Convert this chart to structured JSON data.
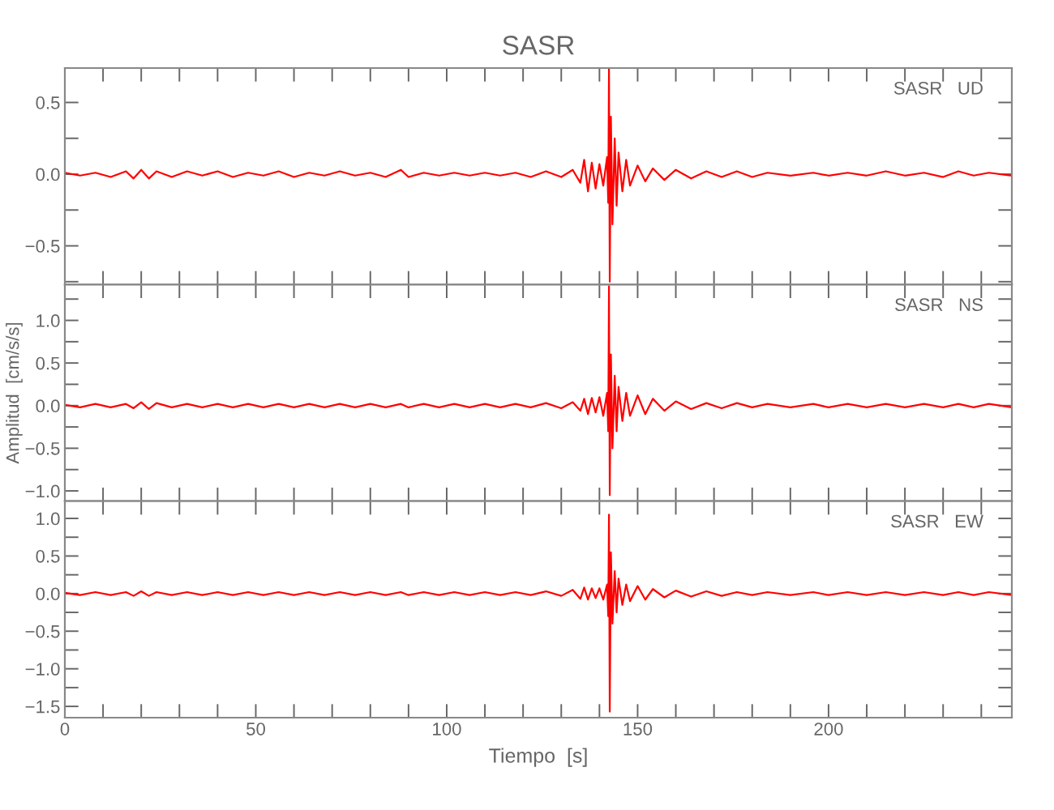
{
  "chart_data": [
    {
      "type": "line",
      "title": "SASR",
      "annotations": [
        "SASR   UD"
      ],
      "tick_labels": "y",
      "x": [
        0,
        4,
        8,
        12,
        16,
        18,
        20,
        22,
        24,
        28,
        32,
        36,
        40,
        44,
        48,
        52,
        56,
        60,
        64,
        68,
        72,
        76,
        80,
        84,
        88,
        90,
        94,
        98,
        102,
        106,
        110,
        114,
        118,
        122,
        126,
        130,
        133,
        135,
        136,
        137,
        138,
        139,
        140,
        141,
        142,
        142.3,
        142.5,
        142.7,
        143,
        143.4,
        144,
        144.5,
        145,
        146,
        147,
        148,
        150,
        152,
        154,
        157,
        160,
        164,
        168,
        172,
        176,
        180,
        184,
        190,
        196,
        200,
        205,
        210,
        215,
        220,
        225,
        230,
        234,
        238,
        242,
        248
      ],
      "series": [
        {
          "color": "#ff0000",
          "values": [
            0.01,
            -0.01,
            0.01,
            -0.02,
            0.02,
            -0.03,
            0.03,
            -0.03,
            0.02,
            -0.02,
            0.02,
            -0.01,
            0.02,
            -0.02,
            0.01,
            -0.01,
            0.02,
            -0.02,
            0.01,
            -0.01,
            0.02,
            -0.01,
            0.01,
            -0.02,
            0.03,
            -0.02,
            0.01,
            -0.01,
            0.01,
            -0.01,
            0.01,
            -0.01,
            0.01,
            -0.02,
            0.02,
            -0.02,
            0.03,
            -0.06,
            0.1,
            -0.12,
            0.08,
            -0.1,
            0.07,
            -0.08,
            0.12,
            -0.2,
            0.74,
            -0.75,
            0.4,
            -0.35,
            0.25,
            -0.22,
            0.15,
            -0.12,
            0.1,
            -0.08,
            0.06,
            -0.05,
            0.04,
            -0.04,
            0.03,
            -0.03,
            0.02,
            -0.02,
            0.02,
            -0.02,
            0.01,
            -0.01,
            0.01,
            -0.01,
            0.01,
            -0.01,
            0.02,
            -0.01,
            0.01,
            -0.02,
            0.02,
            -0.01,
            0.01,
            -0.01
          ]
        }
      ],
      "xlim": [
        0,
        248
      ],
      "xticks": [
        {
          "value": 0,
          "label": null
        },
        {
          "value": 10,
          "label": null
        },
        {
          "value": 20,
          "label": null
        },
        {
          "value": 30,
          "label": null
        },
        {
          "value": 40,
          "label": null
        },
        {
          "value": 50,
          "label": null
        },
        {
          "value": 60,
          "label": null
        },
        {
          "value": 70,
          "label": null
        },
        {
          "value": 80,
          "label": null
        },
        {
          "value": 90,
          "label": null
        },
        {
          "value": 100,
          "label": null
        },
        {
          "value": 110,
          "label": null
        },
        {
          "value": 120,
          "label": null
        },
        {
          "value": 130,
          "label": null
        },
        {
          "value": 140,
          "label": null
        },
        {
          "value": 150,
          "label": null
        },
        {
          "value": 160,
          "label": null
        },
        {
          "value": 170,
          "label": null
        },
        {
          "value": 180,
          "label": null
        },
        {
          "value": 190,
          "label": null
        },
        {
          "value": 200,
          "label": null
        },
        {
          "value": 210,
          "label": null
        },
        {
          "value": 220,
          "label": null
        },
        {
          "value": 230,
          "label": null
        },
        {
          "value": 240,
          "label": null
        }
      ],
      "ylim": [
        -0.77,
        0.74
      ],
      "yticks": [
        {
          "value": -0.75,
          "label": null
        },
        {
          "value": -0.5,
          "label": "−0.5"
        },
        {
          "value": -0.25,
          "label": null
        },
        {
          "value": 0,
          "label": "0.0"
        },
        {
          "value": 0.25,
          "label": null
        },
        {
          "value": 0.5,
          "label": "0.5"
        }
      ]
    },
    {
      "type": "line",
      "ylabel": "Amplitud  [cm/s/s]",
      "annotations": [
        "SASR   NS"
      ],
      "tick_labels": "y",
      "x": [
        0,
        4,
        8,
        12,
        16,
        18,
        20,
        22,
        24,
        28,
        32,
        36,
        40,
        44,
        48,
        52,
        56,
        60,
        64,
        68,
        72,
        76,
        80,
        84,
        88,
        90,
        94,
        98,
        102,
        106,
        110,
        114,
        118,
        122,
        126,
        130,
        133,
        135,
        136,
        137,
        138,
        139,
        140,
        141,
        142,
        142.3,
        142.5,
        142.7,
        143,
        143.4,
        144,
        144.5,
        145,
        146,
        147,
        148,
        150,
        152,
        154,
        157,
        160,
        164,
        168,
        172,
        176,
        180,
        184,
        190,
        196,
        200,
        205,
        210,
        215,
        220,
        225,
        230,
        234,
        238,
        242,
        248
      ],
      "series": [
        {
          "color": "#ff0000",
          "values": [
            0.01,
            -0.02,
            0.02,
            -0.02,
            0.02,
            -0.03,
            0.04,
            -0.04,
            0.03,
            -0.02,
            0.02,
            -0.02,
            0.02,
            -0.02,
            0.02,
            -0.02,
            0.02,
            -0.02,
            0.02,
            -0.02,
            0.02,
            -0.02,
            0.02,
            -0.02,
            0.02,
            -0.02,
            0.02,
            -0.02,
            0.02,
            -0.02,
            0.02,
            -0.02,
            0.02,
            -0.02,
            0.03,
            -0.03,
            0.04,
            -0.06,
            0.08,
            -0.1,
            0.09,
            -0.08,
            0.1,
            -0.12,
            0.15,
            -0.3,
            1.4,
            -1.05,
            0.6,
            -0.5,
            0.35,
            -0.3,
            0.22,
            -0.18,
            0.15,
            -0.12,
            0.12,
            -0.1,
            0.08,
            -0.06,
            0.05,
            -0.04,
            0.03,
            -0.03,
            0.03,
            -0.02,
            0.02,
            -0.02,
            0.02,
            -0.02,
            0.02,
            -0.02,
            0.02,
            -0.02,
            0.02,
            -0.02,
            0.02,
            -0.02,
            0.02,
            -0.02
          ]
        }
      ],
      "xlim": [
        0,
        248
      ],
      "xticks": [
        {
          "value": 0,
          "label": null
        },
        {
          "value": 10,
          "label": null
        },
        {
          "value": 20,
          "label": null
        },
        {
          "value": 30,
          "label": null
        },
        {
          "value": 40,
          "label": null
        },
        {
          "value": 50,
          "label": null
        },
        {
          "value": 60,
          "label": null
        },
        {
          "value": 70,
          "label": null
        },
        {
          "value": 80,
          "label": null
        },
        {
          "value": 90,
          "label": null
        },
        {
          "value": 100,
          "label": null
        },
        {
          "value": 110,
          "label": null
        },
        {
          "value": 120,
          "label": null
        },
        {
          "value": 130,
          "label": null
        },
        {
          "value": 140,
          "label": null
        },
        {
          "value": 150,
          "label": null
        },
        {
          "value": 160,
          "label": null
        },
        {
          "value": 170,
          "label": null
        },
        {
          "value": 180,
          "label": null
        },
        {
          "value": 190,
          "label": null
        },
        {
          "value": 200,
          "label": null
        },
        {
          "value": 210,
          "label": null
        },
        {
          "value": 220,
          "label": null
        },
        {
          "value": 230,
          "label": null
        },
        {
          "value": 240,
          "label": null
        }
      ],
      "ylim": [
        -1.12,
        1.42
      ],
      "yticks": [
        {
          "value": -1.0,
          "label": "−1.0"
        },
        {
          "value": -0.75,
          "label": null
        },
        {
          "value": -0.5,
          "label": "−0.5"
        },
        {
          "value": -0.25,
          "label": null
        },
        {
          "value": 0,
          "label": "0.0"
        },
        {
          "value": 0.25,
          "label": null
        },
        {
          "value": 0.5,
          "label": "0.5"
        },
        {
          "value": 0.75,
          "label": null
        },
        {
          "value": 1.0,
          "label": "1.0"
        },
        {
          "value": 1.25,
          "label": null
        }
      ]
    },
    {
      "type": "line",
      "xlabel": "Tiempo  [s]",
      "annotations": [
        "SASR   EW"
      ],
      "x": [
        0,
        4,
        8,
        12,
        16,
        18,
        20,
        22,
        24,
        28,
        32,
        36,
        40,
        44,
        48,
        52,
        56,
        60,
        64,
        68,
        72,
        76,
        80,
        84,
        88,
        90,
        94,
        98,
        102,
        106,
        110,
        114,
        118,
        122,
        126,
        130,
        133,
        135,
        136,
        137,
        138,
        139,
        140,
        141,
        142,
        142.3,
        142.5,
        142.7,
        143,
        143.4,
        144,
        144.5,
        145,
        146,
        147,
        148,
        150,
        152,
        154,
        157,
        160,
        164,
        168,
        172,
        176,
        180,
        184,
        190,
        196,
        200,
        205,
        210,
        215,
        220,
        225,
        230,
        234,
        238,
        242,
        248
      ],
      "series": [
        {
          "color": "#ff0000",
          "values": [
            0.01,
            -0.02,
            0.02,
            -0.02,
            0.02,
            -0.03,
            0.03,
            -0.03,
            0.02,
            -0.02,
            0.02,
            -0.02,
            0.02,
            -0.02,
            0.02,
            -0.02,
            0.02,
            -0.02,
            0.02,
            -0.02,
            0.02,
            -0.02,
            0.02,
            -0.02,
            0.02,
            -0.02,
            0.02,
            -0.02,
            0.02,
            -0.02,
            0.02,
            -0.02,
            0.02,
            -0.02,
            0.03,
            -0.03,
            0.05,
            -0.07,
            0.08,
            -0.08,
            0.07,
            -0.06,
            0.07,
            -0.08,
            0.12,
            -0.3,
            1.05,
            -1.57,
            0.55,
            -0.4,
            0.3,
            -0.25,
            0.2,
            -0.15,
            0.12,
            -0.1,
            0.1,
            -0.08,
            0.06,
            -0.05,
            0.04,
            -0.04,
            0.03,
            -0.03,
            0.02,
            -0.02,
            0.02,
            -0.02,
            0.02,
            -0.02,
            0.02,
            -0.02,
            0.02,
            -0.02,
            0.02,
            -0.02,
            0.02,
            -0.02,
            0.02,
            -0.02
          ]
        }
      ],
      "xlim": [
        0,
        248
      ],
      "xticks": [
        0,
        {
          "value": 10,
          "label": null
        },
        {
          "value": 20,
          "label": null
        },
        {
          "value": 30,
          "label": null
        },
        {
          "value": 40,
          "label": null
        },
        50,
        {
          "value": 60,
          "label": null
        },
        {
          "value": 70,
          "label": null
        },
        {
          "value": 80,
          "label": null
        },
        {
          "value": 90,
          "label": null
        },
        100,
        {
          "value": 110,
          "label": null
        },
        {
          "value": 120,
          "label": null
        },
        {
          "value": 130,
          "label": null
        },
        {
          "value": 140,
          "label": null
        },
        150,
        {
          "value": 160,
          "label": null
        },
        {
          "value": 170,
          "label": null
        },
        {
          "value": 180,
          "label": null
        },
        {
          "value": 190,
          "label": null
        },
        200,
        {
          "value": 210,
          "label": null
        },
        {
          "value": 220,
          "label": null
        },
        {
          "value": 230,
          "label": null
        },
        {
          "value": 240,
          "label": null
        }
      ],
      "ylim": [
        -1.65,
        1.23
      ],
      "yticks": [
        {
          "value": -1.5,
          "label": "−1.5"
        },
        {
          "value": -1.25,
          "label": null
        },
        {
          "value": -1.0,
          "label": "−1.0"
        },
        {
          "value": -0.75,
          "label": null
        },
        {
          "value": -0.5,
          "label": "−0.5"
        },
        {
          "value": -0.25,
          "label": null
        },
        {
          "value": 0,
          "label": "0.0"
        },
        {
          "value": 0.25,
          "label": null
        },
        {
          "value": 0.5,
          "label": "0.5"
        },
        {
          "value": 0.75,
          "label": null
        },
        {
          "value": 1.0,
          "label": "1.0"
        }
      ]
    }
  ]
}
